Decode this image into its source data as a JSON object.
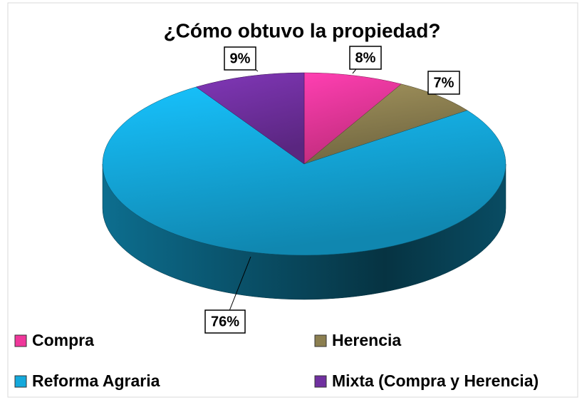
{
  "chart_data": {
    "type": "pie3d",
    "title": "¿Cómo obtuvo la propiedad?",
    "categories": [
      "Compra",
      "Herencia",
      "Reforma Agraria",
      "Mixta (Compra y Herencia)"
    ],
    "values": [
      8,
      7,
      76,
      9
    ],
    "value_labels": [
      "8%",
      "7%",
      "76%",
      "9%"
    ],
    "colors": [
      "#f0379b",
      "#8c7f50",
      "#14a9dc",
      "#7030a0"
    ],
    "legend": "bottom"
  }
}
